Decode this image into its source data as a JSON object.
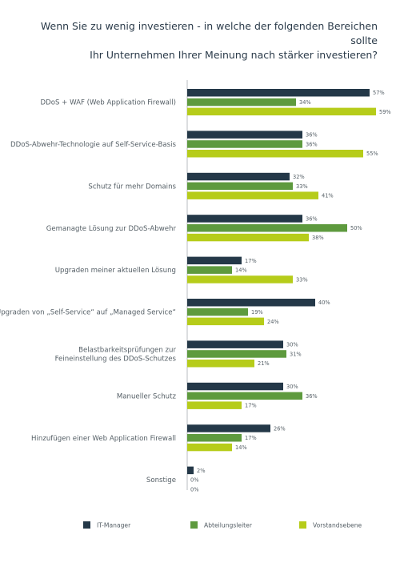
{
  "chart_data": {
    "type": "bar",
    "orientation": "horizontal",
    "title": "Wenn Sie zu wenig investieren - in welche der folgenden Bereichen sollte Ihr Unternehmen Ihrer Meinung nach stärker investieren?",
    "title_lines": [
      "Wenn Sie zu wenig investieren - in welche der folgenden Bereichen sollte",
      "Ihr Unternehmen Ihrer Meinung nach stärker investieren?"
    ],
    "categories": [
      [
        "DDoS + WAF (Web Application Firewall)"
      ],
      [
        "DDoS-Abwehr-Technologie auf Self-Service-Basis"
      ],
      [
        "Schutz für mehr Domains"
      ],
      [
        "Gemanagte Lösung zur DDoS-Abwehr"
      ],
      [
        "Upgraden meiner aktuellen Lösung"
      ],
      [
        "Upgraden von „Self-Service“ auf „Managed Service“"
      ],
      [
        "Belastbarkeitsprüfungen zur",
        "Feineinstellung des DDoS-Schutzes"
      ],
      [
        "Manueller Schutz"
      ],
      [
        "Hinzufügen einer Web Application Firewall"
      ],
      [
        "Sonstige"
      ]
    ],
    "series": [
      {
        "name": "IT-Manager",
        "color": "#243848",
        "values": [
          57,
          36,
          32,
          36,
          17,
          40,
          30,
          30,
          26,
          2
        ]
      },
      {
        "name": "Abteilungsleiter",
        "color": "#5e9a3e",
        "values": [
          34,
          36,
          33,
          50,
          14,
          19,
          31,
          36,
          17,
          0
        ]
      },
      {
        "name": "Vorstandsebene",
        "color": "#b6cc1a",
        "values": [
          59,
          55,
          41,
          38,
          33,
          24,
          21,
          17,
          14,
          0
        ]
      }
    ],
    "value_suffix": "%",
    "xlim": [
      0,
      100
    ],
    "legend_position": "bottom",
    "grid": false
  }
}
